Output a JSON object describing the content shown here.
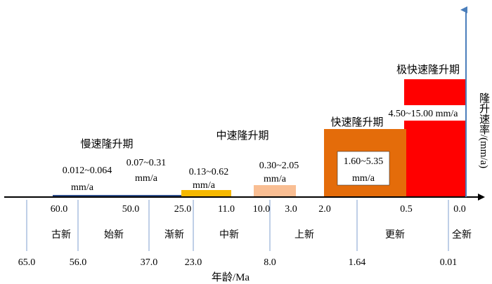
{
  "chart_data": {
    "type": "bar",
    "title": "",
    "xlabel": "年龄/Ma",
    "ylabel": "隆升速率/(mm/a)",
    "top_age_ticks": [
      "60.0",
      "50.0",
      "25.0",
      "11.0",
      "10.0",
      "3.0",
      "2.0",
      "0.5",
      "0.0"
    ],
    "epochs": [
      "古新",
      "始新",
      "渐新",
      "中新",
      "上新",
      "更新",
      "全新"
    ],
    "epoch_boundaries": [
      "65.0",
      "56.0",
      "37.0",
      "23.0",
      "8.0",
      "1.64",
      "0.01"
    ],
    "periods": [
      {
        "phase": "慢速隆升期",
        "rate": "0.012~0.064 mm/a",
        "rate_line1": "0.012~0.064",
        "rate_line2": "mm/a",
        "age_start": 60.0,
        "age_end": 50.0,
        "rate_min": 0.012,
        "rate_max": 0.064,
        "color": "#2e4d8a"
      },
      {
        "phase": "",
        "rate": "0.07~0.31 mm/a",
        "rate_line1": "0.07~0.31",
        "rate_line2": "mm/a",
        "age_start": 50.0,
        "age_end": 25.0,
        "rate_min": 0.07,
        "rate_max": 0.31,
        "color": "#2e4d8a"
      },
      {
        "phase": "中速隆升期",
        "rate": "0.13~0.62 mm/a",
        "rate_line1": "0.13~0.62",
        "rate_line2": "mm/a",
        "age_start": 25.0,
        "age_end": 11.0,
        "rate_min": 0.13,
        "rate_max": 0.62,
        "color": "#f5b800"
      },
      {
        "phase": "",
        "rate": "0.30~2.05 mm/a",
        "rate_line1": "0.30~2.05",
        "rate_line2": "mm/a",
        "age_start": 10.0,
        "age_end": 3.0,
        "rate_min": 0.3,
        "rate_max": 2.05,
        "color": "#f9be93"
      },
      {
        "phase": "快速隆升期",
        "rate": "1.60~5.35 mm/a",
        "rate_line1": "1.60~5.35",
        "rate_line2": "mm/a",
        "age_start": 2.0,
        "age_end": 0.5,
        "rate_min": 1.6,
        "rate_max": 5.35,
        "color": "#e46c0a"
      },
      {
        "phase": "极快速隆升期",
        "rate": "4.50~15.00 mm/a",
        "rate_line1": "4.50~15.00 mm/a",
        "rate_line2": "",
        "age_start": 0.5,
        "age_end": 0.0,
        "rate_min": 4.5,
        "rate_max": 15.0,
        "color": "#ff0000"
      }
    ]
  }
}
